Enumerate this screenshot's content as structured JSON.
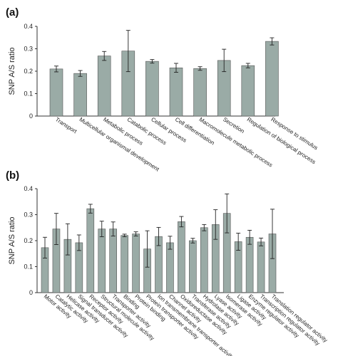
{
  "chart_data": [
    {
      "type": "bar",
      "panel_label": "(a)",
      "ylabel": "SNP A/S ratio",
      "ylim": [
        0,
        0.4
      ],
      "yticks": [
        "0",
        "0.1",
        "0.2",
        "0.3",
        "0.4"
      ],
      "bar_color": "#9aaba6",
      "categories": [
        "Transport",
        "Multicellular organismal development",
        "Metabolic process",
        "Catabolic process",
        "Cellular process",
        "Cell differentiation",
        "Macromolecule metabolic process",
        "Secretion",
        "Regulation of biological process",
        "Response to stimulus"
      ],
      "values": [
        0.21,
        0.19,
        0.268,
        0.29,
        0.244,
        0.215,
        0.212,
        0.248,
        0.225,
        0.333
      ],
      "errors": [
        0.013,
        0.013,
        0.02,
        0.092,
        0.008,
        0.02,
        0.008,
        0.05,
        0.01,
        0.016
      ]
    },
    {
      "type": "bar",
      "panel_label": "(b)",
      "ylabel": "SNP A/S ratio",
      "ylim": [
        0,
        0.4
      ],
      "yticks": [
        "0",
        "0.1",
        "0.2",
        "0.3",
        "0.4"
      ],
      "bar_color": "#9aaba6",
      "categories": [
        "Motor activity",
        "Catalytic activity",
        "Helicase activity",
        "Signal transducer activity",
        "Receptor activity",
        "Structural molecule activity",
        "Transporter activity",
        "Binding",
        "Protein binding",
        "Protein transporter activity",
        "Ion transmembrane transporter activity",
        "Channel activity",
        "Oxidoreductase activity",
        "Transferase activity",
        "Hydrolase activity",
        "Lyase activity",
        "Isomerase activity",
        "Ligase activity",
        "Enzyme regulator activity",
        "Transcription regulator activity",
        "Translation regulator activity"
      ],
      "values": [
        0.173,
        0.245,
        0.205,
        0.192,
        0.323,
        0.245,
        0.245,
        0.22,
        0.226,
        0.168,
        0.216,
        0.192,
        0.273,
        0.2,
        0.25,
        0.262,
        0.305,
        0.196,
        0.213,
        0.195,
        0.226
      ],
      "errors": [
        0.04,
        0.06,
        0.06,
        0.03,
        0.017,
        0.03,
        0.027,
        0.005,
        0.008,
        0.07,
        0.035,
        0.025,
        0.02,
        0.009,
        0.012,
        0.057,
        0.075,
        0.033,
        0.027,
        0.015,
        0.095
      ]
    }
  ]
}
